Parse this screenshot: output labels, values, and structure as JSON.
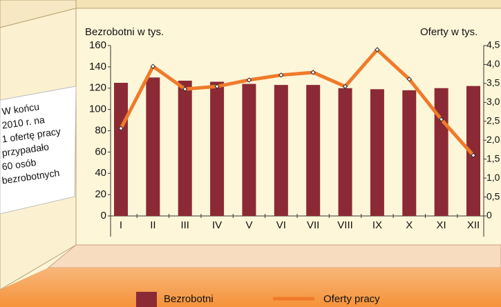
{
  "chart_data": {
    "type": "bar",
    "y_label": "Bezrobotni w tys.",
    "y2_label": "Oferty w tys.",
    "categories": [
      "I",
      "II",
      "III",
      "IV",
      "V",
      "VI",
      "VII",
      "VIII",
      "IX",
      "X",
      "XI",
      "XII"
    ],
    "series": [
      {
        "name": "Bezrobotni",
        "type": "bar",
        "color": "#8b2a35",
        "values": [
          125,
          130,
          127,
          126,
          124,
          123,
          123,
          120,
          119,
          118,
          120,
          122
        ]
      },
      {
        "name": "Oferty pracy",
        "type": "line",
        "axis": "y2",
        "color": "#f07a2a",
        "values": [
          2.31,
          3.95,
          3.35,
          3.42,
          3.59,
          3.72,
          3.79,
          3.42,
          4.39,
          3.61,
          2.55,
          1.6
        ]
      }
    ],
    "ylim": [
      0,
      160
    ],
    "yticks": [
      0,
      20,
      40,
      60,
      80,
      100,
      120,
      140,
      160
    ],
    "y2lim": [
      0,
      4.5
    ],
    "y2ticks": [
      0,
      {
        "value": 0.5,
        "label": "0,5"
      },
      {
        "value": 1,
        "label": "1,0"
      },
      {
        "value": 1.5,
        "label": "1,5"
      },
      {
        "value": 2,
        "label": "2,0"
      },
      {
        "value": 2.5,
        "label": "2,5"
      },
      {
        "value": 3,
        "label": "3,0"
      },
      {
        "value": 3.5,
        "label": "3,5"
      },
      {
        "value": 4,
        "label": "4,0"
      },
      {
        "value": 4.5,
        "label": "4,5"
      }
    ],
    "annotation": [
      "W końcu",
      "2010 r. na",
      "1 ofertę pracy",
      "przypadało",
      "60 osób",
      "bezrobotnych"
    ]
  }
}
